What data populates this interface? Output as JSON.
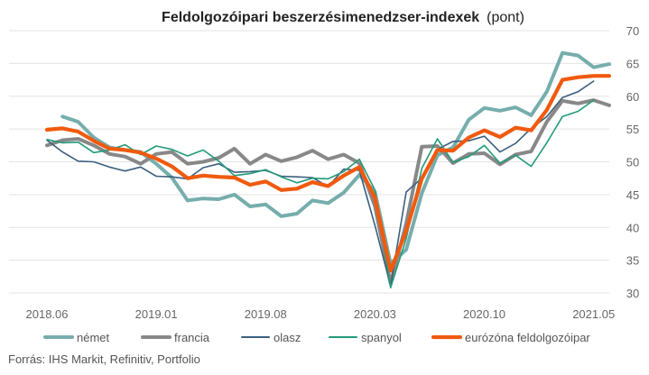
{
  "chart_data": {
    "type": "line",
    "title": "Feldolgozóipari beszerzésimenedzser-indexek",
    "title_unit": "(pont)",
    "source": "Forrás: IHS Markit, Refinitiv, Portfolio",
    "ylim": [
      30,
      70
    ],
    "yticks": [
      30,
      35,
      40,
      45,
      50,
      55,
      60,
      65,
      70
    ],
    "y_axis_side": "right",
    "grid": true,
    "legend_position": "bottom",
    "x": [
      "2018.06",
      "2018.07",
      "2018.08",
      "2018.09",
      "2018.10",
      "2018.11",
      "2018.12",
      "2019.01",
      "2019.02",
      "2019.03",
      "2019.04",
      "2019.05",
      "2019.06",
      "2019.07",
      "2019.08",
      "2019.09",
      "2019.10",
      "2019.11",
      "2019.12",
      "2020.01",
      "2020.02",
      "2020.03",
      "2020.04",
      "2020.05",
      "2020.06",
      "2020.07",
      "2020.08",
      "2020.09",
      "2020.10",
      "2020.11",
      "2020.12",
      "2021.01",
      "2021.02",
      "2021.03",
      "2021.04",
      "2021.05",
      "2021.06"
    ],
    "xtick_labels": [
      "2018.06",
      "2019.01",
      "2019.08",
      "2020.03",
      "2020.10",
      "2021.05"
    ],
    "series": [
      {
        "name": "német",
        "color": "#76adad",
        "width": 4,
        "values": [
          null,
          56.9,
          56.1,
          53.7,
          52.2,
          51.8,
          51.5,
          49.7,
          47.6,
          44.1,
          44.4,
          44.3,
          45.0,
          43.2,
          43.5,
          41.7,
          42.1,
          44.1,
          43.7,
          45.3,
          48.0,
          45.4,
          34.5,
          36.6,
          45.2,
          51.0,
          52.2,
          56.4,
          58.2,
          57.8,
          58.3,
          57.1,
          60.7,
          66.6,
          66.2,
          64.4,
          64.9
        ]
      },
      {
        "name": "francia",
        "color": "#888888",
        "width": 4,
        "values": [
          52.5,
          53.3,
          53.5,
          52.5,
          51.2,
          50.8,
          49.7,
          51.2,
          51.5,
          49.7,
          50.0,
          50.6,
          52.0,
          49.7,
          51.1,
          50.1,
          50.7,
          51.7,
          50.4,
          51.1,
          49.8,
          43.2,
          31.5,
          40.6,
          52.3,
          52.4,
          49.8,
          51.2,
          51.3,
          49.6,
          51.1,
          51.6,
          56.1,
          59.3,
          58.9,
          59.4,
          58.6
        ]
      },
      {
        "name": "olasz",
        "color": "#3b5f7e",
        "width": 1.6,
        "values": [
          53.3,
          51.5,
          50.1,
          50.0,
          49.2,
          48.6,
          49.2,
          47.8,
          47.7,
          47.4,
          49.1,
          49.7,
          48.4,
          48.5,
          48.7,
          47.8,
          47.7,
          47.6,
          46.2,
          48.9,
          48.7,
          40.3,
          31.1,
          45.4,
          47.5,
          51.9,
          53.1,
          53.2,
          53.9,
          51.5,
          52.8,
          55.1,
          56.9,
          59.8,
          60.7,
          62.3,
          null
        ]
      },
      {
        "name": "spanyol",
        "color": "#239a7a",
        "width": 1.6,
        "values": [
          53.4,
          52.9,
          53.0,
          51.4,
          51.8,
          52.6,
          51.1,
          52.4,
          51.9,
          50.9,
          51.8,
          50.1,
          47.9,
          48.2,
          48.8,
          47.7,
          46.8,
          47.5,
          47.4,
          48.5,
          50.4,
          45.7,
          30.8,
          38.3,
          49.0,
          53.5,
          49.9,
          50.8,
          52.5,
          49.8,
          51.0,
          49.3,
          52.9,
          56.9,
          57.7,
          59.4,
          null
        ]
      },
      {
        "name": "eurózóna feldolgozóipar",
        "color": "#f05a0e",
        "width": 4.2,
        "values": [
          54.9,
          55.1,
          54.6,
          53.2,
          52.0,
          51.8,
          51.4,
          50.5,
          49.3,
          47.5,
          47.9,
          47.7,
          47.6,
          46.5,
          47.0,
          45.7,
          45.9,
          46.9,
          46.3,
          47.9,
          49.2,
          44.5,
          33.4,
          39.4,
          47.4,
          51.8,
          51.7,
          53.7,
          54.8,
          53.8,
          55.2,
          54.8,
          57.9,
          62.5,
          62.9,
          63.1,
          63.1
        ]
      }
    ]
  }
}
